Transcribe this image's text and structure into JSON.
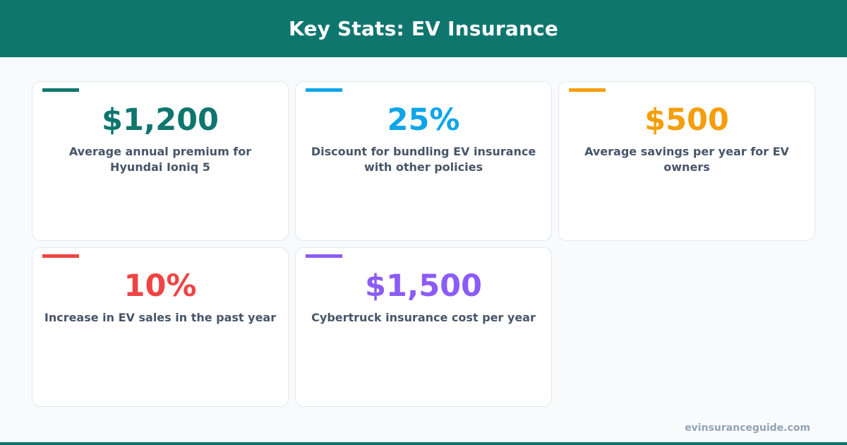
{
  "header": {
    "title": "Key Stats: EV Insurance"
  },
  "stats": [
    {
      "value": "$1,200",
      "label": "Average annual premium for Hyundai Ioniq 5",
      "color": "#0f766e"
    },
    {
      "value": "25%",
      "label": "Discount for bundling EV insurance with other policies",
      "color": "#0ea5e9"
    },
    {
      "value": "$500",
      "label": "Average savings per year for EV owners",
      "color": "#f59e0b"
    },
    {
      "value": "10%",
      "label": "Increase in EV sales in the past year",
      "color": "#ef4444"
    },
    {
      "value": "$1,500",
      "label": "Cybertruck insurance cost per year",
      "color": "#8b5cf6"
    }
  ],
  "footer": {
    "site": "evinsuranceguide.com"
  },
  "theme": {
    "brand": "#0f766e",
    "label_text": "#475569",
    "muted_text": "#94a3b8"
  }
}
